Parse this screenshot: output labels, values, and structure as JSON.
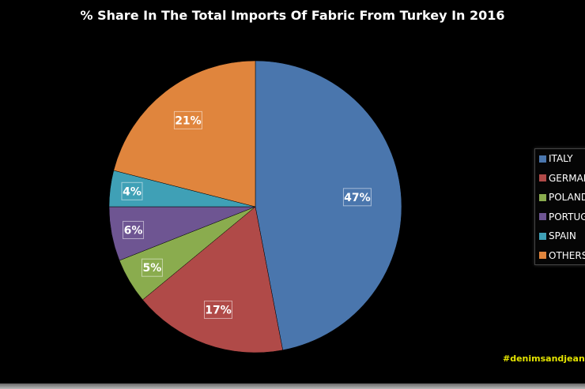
{
  "chart_data": {
    "type": "pie",
    "title": "% Share In The Total Imports Of Fabric From Turkey In 2016",
    "categories": [
      "ITALY",
      "GERMANY",
      "POLAND",
      "PORTUGAL",
      "SPAIN",
      "OTHERS"
    ],
    "values": [
      47,
      17,
      5,
      6,
      4,
      21
    ],
    "data_labels": [
      "47%",
      "17%",
      "5%",
      "6%",
      "4%",
      "21%"
    ],
    "colors": [
      "#4a76ad",
      "#b04a48",
      "#8aac4e",
      "#6e5592",
      "#3fa0b6",
      "#e0853d"
    ],
    "legend_position": "right",
    "start_angle": "top",
    "direction": "clockwise"
  },
  "watermark": "#denimsandjeans"
}
